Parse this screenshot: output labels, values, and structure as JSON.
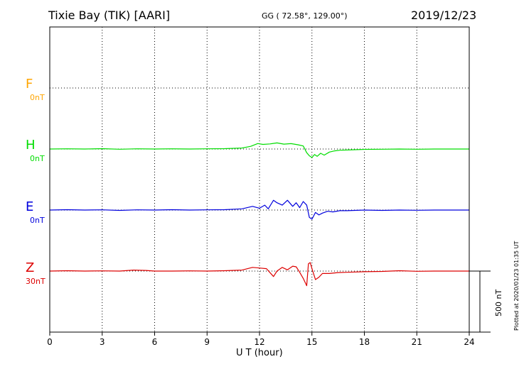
{
  "header": {
    "station": "Tixie Bay (TIK)  [AARI]",
    "coords": "GG ( 72.58°, 129.00°)",
    "date": "2019/12/23"
  },
  "footer": {
    "plotted": "Plotted at 2020/01/23 01:35 UT"
  },
  "chart_data": {
    "type": "line",
    "xlabel": "U T (hour)",
    "xlim": [
      0,
      24
    ],
    "xticks": [
      0,
      3,
      6,
      9,
      12,
      15,
      18,
      21,
      24
    ],
    "scale_bar": "500 nT",
    "grid": true,
    "series": [
      {
        "name": "F",
        "baseline": "0nT",
        "color": "#ffa500",
        "x": [],
        "y": []
      },
      {
        "name": "H",
        "baseline": "0nT",
        "color": "#00dd00",
        "x": [
          0,
          1,
          2,
          3,
          4,
          5,
          6,
          7,
          8,
          9,
          10,
          11,
          11.5,
          11.9,
          12.2,
          12.6,
          13.0,
          13.4,
          13.8,
          14.2,
          14.5,
          14.7,
          14.85,
          15.0,
          15.15,
          15.3,
          15.5,
          15.7,
          16.0,
          16.3,
          16.6,
          17,
          18,
          19,
          20,
          21,
          22,
          23,
          24
        ],
        "y": [
          0,
          2,
          0,
          3,
          -2,
          2,
          0,
          2,
          0,
          2,
          3,
          8,
          22,
          45,
          38,
          42,
          50,
          40,
          44,
          35,
          25,
          -30,
          -55,
          -70,
          -45,
          -60,
          -35,
          -50,
          -25,
          -15,
          -10,
          -8,
          -3,
          -2,
          0,
          -2,
          0,
          0,
          0
        ]
      },
      {
        "name": "E",
        "baseline": "0nT",
        "color": "#0000dd",
        "x": [
          0,
          1,
          2,
          3,
          4,
          5,
          6,
          7,
          8,
          9,
          10,
          11,
          11.6,
          12.0,
          12.3,
          12.5,
          12.8,
          13.0,
          13.3,
          13.6,
          13.9,
          14.1,
          14.3,
          14.5,
          14.7,
          14.85,
          15.0,
          15.2,
          15.4,
          15.6,
          15.9,
          16.2,
          16.6,
          17,
          18,
          19,
          20,
          21,
          22,
          23,
          24
        ],
        "y": [
          0,
          3,
          0,
          2,
          -3,
          2,
          0,
          3,
          0,
          2,
          3,
          10,
          30,
          15,
          40,
          10,
          80,
          60,
          40,
          80,
          30,
          60,
          20,
          70,
          40,
          -60,
          -75,
          -20,
          -40,
          -25,
          -10,
          -15,
          -5,
          -5,
          0,
          -3,
          0,
          -2,
          0,
          0,
          0
        ]
      },
      {
        "name": "Z",
        "baseline": "30nT",
        "color": "#dd0000",
        "x": [
          0,
          1,
          2,
          3,
          4,
          4.8,
          5.5,
          6,
          7,
          8,
          9,
          10,
          11,
          11.6,
          12.0,
          12.4,
          12.8,
          13.0,
          13.3,
          13.6,
          13.9,
          14.1,
          14.3,
          14.5,
          14.7,
          14.8,
          14.9,
          15.0,
          15.2,
          15.4,
          15.6,
          16.0,
          16.5,
          17,
          18,
          19,
          20,
          21,
          22,
          23,
          24
        ],
        "y": [
          0,
          3,
          0,
          2,
          0,
          8,
          5,
          0,
          0,
          2,
          0,
          3,
          8,
          30,
          25,
          20,
          -45,
          0,
          30,
          10,
          40,
          35,
          -10,
          -60,
          -120,
          60,
          70,
          20,
          -70,
          -50,
          -20,
          -20,
          -12,
          -10,
          -5,
          -3,
          3,
          -2,
          0,
          0,
          0
        ]
      }
    ]
  }
}
